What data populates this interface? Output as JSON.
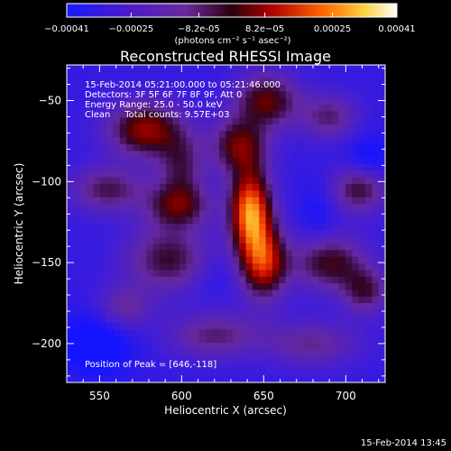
{
  "chart_data": {
    "type": "heatmap",
    "title": "Reconstructed RHESSI Image",
    "xlabel": "Heliocentric X (arcsec)",
    "ylabel": "Heliocentric Y (arcsec)",
    "xlim": [
      530,
      724
    ],
    "ylim": [
      -224,
      -28
    ],
    "xticks": [
      550,
      600,
      650,
      700
    ],
    "yticks": [
      -50,
      -100,
      -150,
      -200
    ],
    "annotations": [
      "15-Feb-2014 05:21:00.000 to 05:21:46.000",
      "Detectors: 3F 5F 6F 7F 8F 9F, Att 0",
      "Energy Range: 25.0 - 50.0 keV",
      "Clean     Total counts: 9.57E+03"
    ],
    "peak_label": "Position of Peak = [646,-118]",
    "peak": [
      646,
      -118
    ],
    "colorbar": {
      "unit_label": "(photons cm⁻² s⁻¹ asec⁻²)",
      "ticks": [
        "-0.00041",
        "-0.00025",
        "-8.2e-05",
        "8.2e-05",
        "0.00025",
        "0.00041"
      ],
      "range": [
        -0.00041,
        0.00041
      ]
    },
    "blobs": [
      {
        "x": 642,
        "y": -118,
        "sx": 9,
        "sy": 18,
        "a": 1.05
      },
      {
        "x": 650,
        "y": -150,
        "sx": 10,
        "sy": 16,
        "a": 0.8
      },
      {
        "x": 635,
        "y": -78,
        "sx": 12,
        "sy": 12,
        "a": 0.6
      },
      {
        "x": 652,
        "y": -50,
        "sx": 14,
        "sy": 12,
        "a": 0.6
      },
      {
        "x": 578,
        "y": -68,
        "sx": 16,
        "sy": 12,
        "a": 0.7
      },
      {
        "x": 598,
        "y": -115,
        "sx": 14,
        "sy": 10,
        "a": 0.55
      },
      {
        "x": 592,
        "y": -148,
        "sx": 18,
        "sy": 14,
        "a": 0.5
      },
      {
        "x": 690,
        "y": -150,
        "sx": 16,
        "sy": 12,
        "a": 0.55
      },
      {
        "x": 712,
        "y": -168,
        "sx": 10,
        "sy": 10,
        "a": 0.45
      },
      {
        "x": 708,
        "y": -105,
        "sx": 12,
        "sy": 10,
        "a": 0.5
      },
      {
        "x": 690,
        "y": -60,
        "sx": 12,
        "sy": 10,
        "a": 0.4
      },
      {
        "x": 555,
        "y": -105,
        "sx": 16,
        "sy": 10,
        "a": 0.45
      },
      {
        "x": 620,
        "y": -195,
        "sx": 20,
        "sy": 10,
        "a": 0.4
      },
      {
        "x": 680,
        "y": -200,
        "sx": 20,
        "sy": 10,
        "a": 0.35
      },
      {
        "x": 565,
        "y": -178,
        "sx": 12,
        "sy": 10,
        "a": 0.35
      },
      {
        "x": 600,
        "y": -90,
        "sx": 10,
        "sy": 14,
        "a": 0.4
      },
      {
        "x": 548,
        "y": -200,
        "sx": 16,
        "sy": 14,
        "a": -0.3
      },
      {
        "x": 715,
        "y": -85,
        "sx": 10,
        "sy": 10,
        "a": -0.2
      },
      {
        "x": 683,
        "y": -120,
        "sx": 8,
        "sy": 14,
        "a": -0.15
      },
      {
        "x": 620,
        "y": -158,
        "sx": 10,
        "sy": 10,
        "a": -0.1
      }
    ],
    "base_level": -0.32
  },
  "footer": {
    "timestamp": "15-Feb-2014 13:45"
  }
}
